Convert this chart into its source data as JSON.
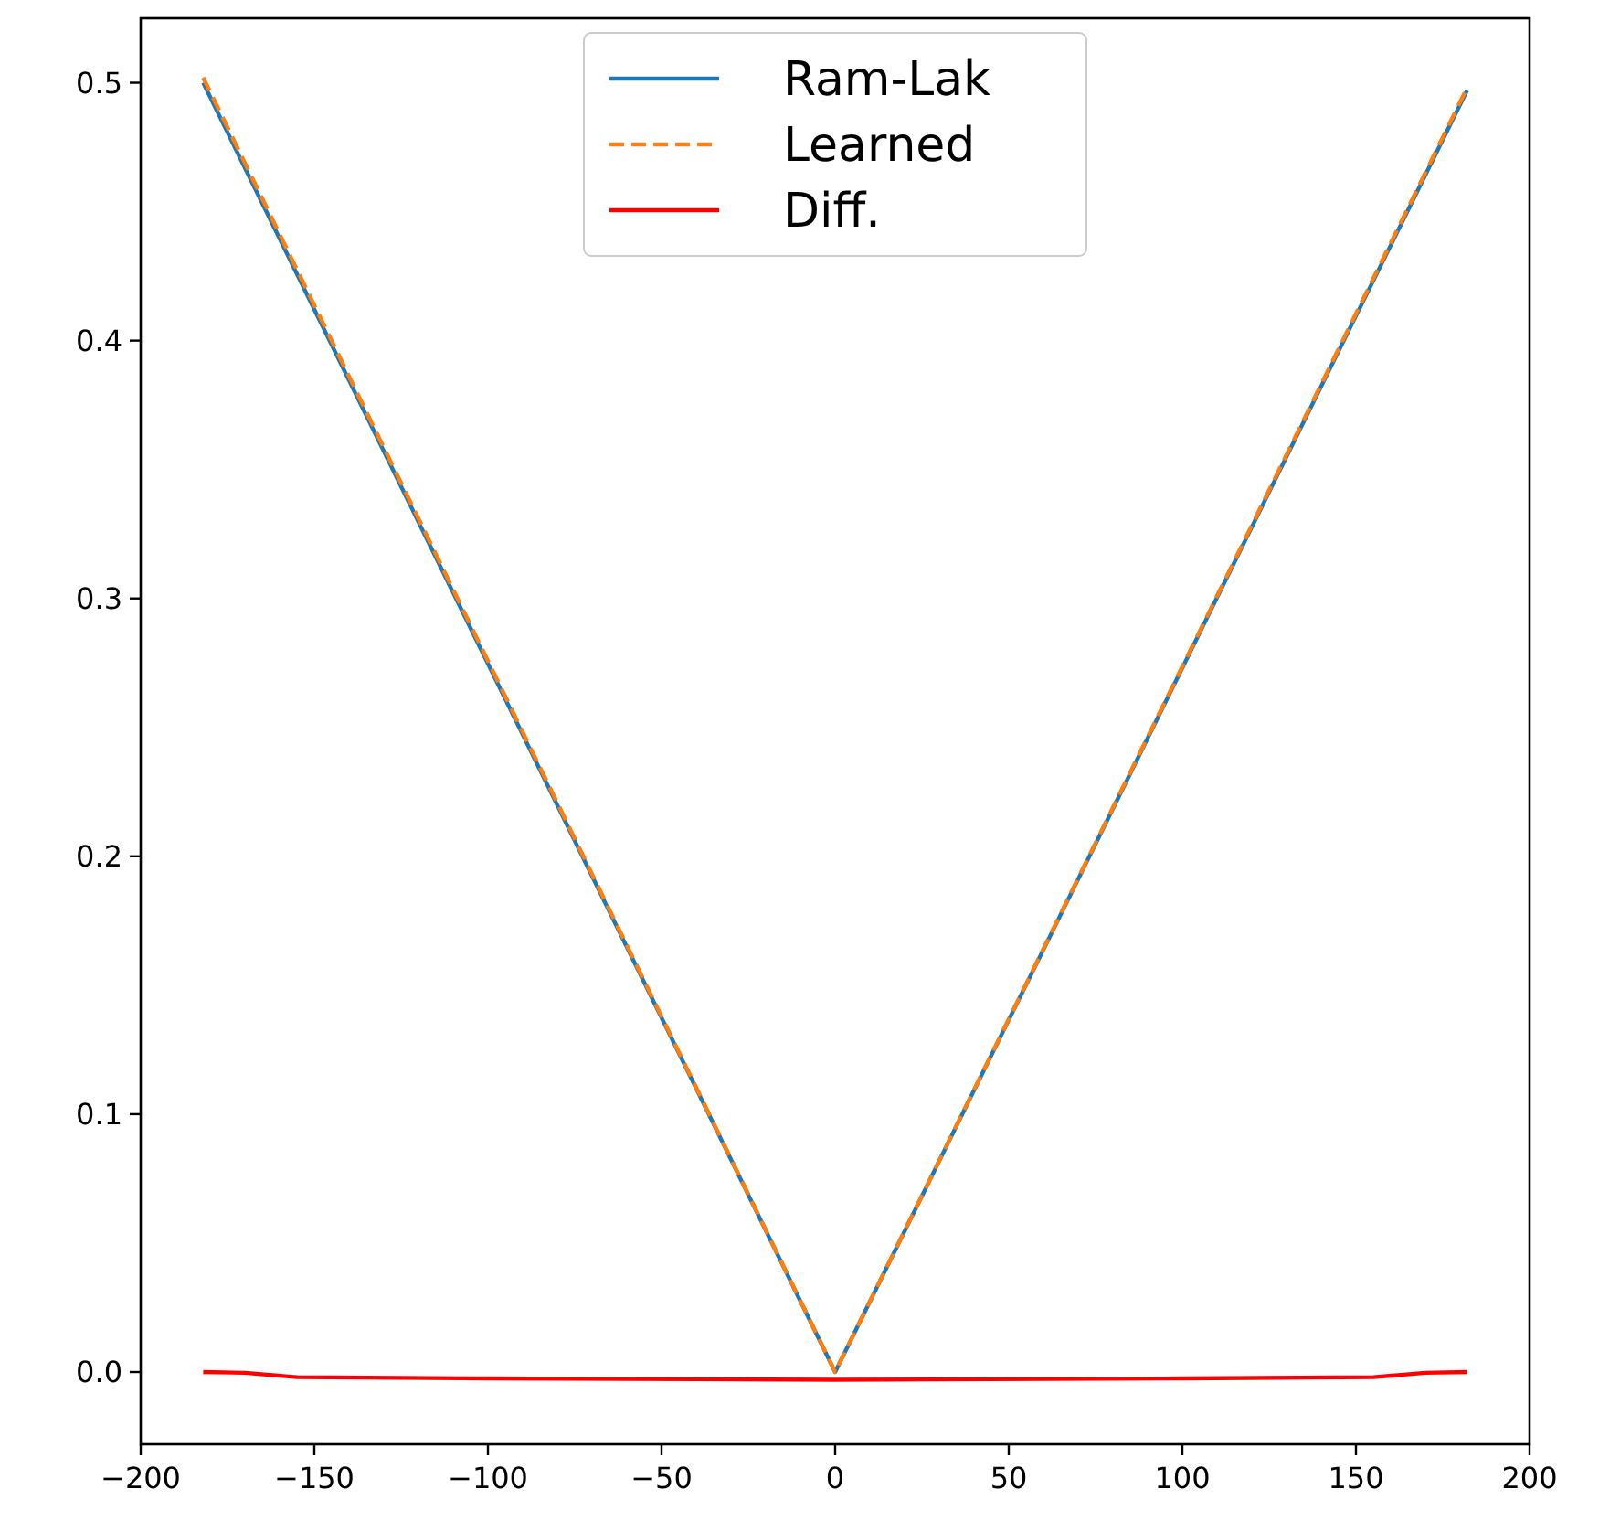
{
  "chart_data": {
    "type": "line",
    "x": [
      -182,
      0,
      182
    ],
    "series": [
      {
        "name": "Ram-Lak",
        "color": "#1f77b4",
        "values": [
          0.5,
          0,
          0.497
        ],
        "line_style": "solid"
      },
      {
        "name": "Learned",
        "color": "#ff7f0e",
        "values": [
          0.502,
          0,
          0.498
        ],
        "line_style": "dashed"
      },
      {
        "name": "Diff.",
        "color": "#ff0000",
        "x": [
          -182,
          -170,
          -155,
          -100,
          0,
          100,
          155,
          170,
          182
        ],
        "values": [
          0,
          -0.0003,
          -0.002,
          -0.0025,
          -0.003,
          -0.0025,
          -0.002,
          -0.0003,
          0
        ],
        "line_style": "solid"
      }
    ],
    "xlim": [
      -200,
      200
    ],
    "xticks": [
      {
        "value": -200,
        "label": "−200"
      },
      {
        "value": -150,
        "label": "−150"
      },
      {
        "value": -100,
        "label": "−100"
      },
      {
        "value": -50,
        "label": "−50"
      },
      0,
      50,
      100,
      150,
      200
    ],
    "ylim": [
      -0.028,
      0.525
    ],
    "yticks": [
      {
        "value": 0,
        "label": "0.0"
      },
      0.1,
      0.2,
      0.3,
      0.4,
      0.5
    ],
    "legend": "top",
    "grid": false,
    "marker": "none"
  }
}
